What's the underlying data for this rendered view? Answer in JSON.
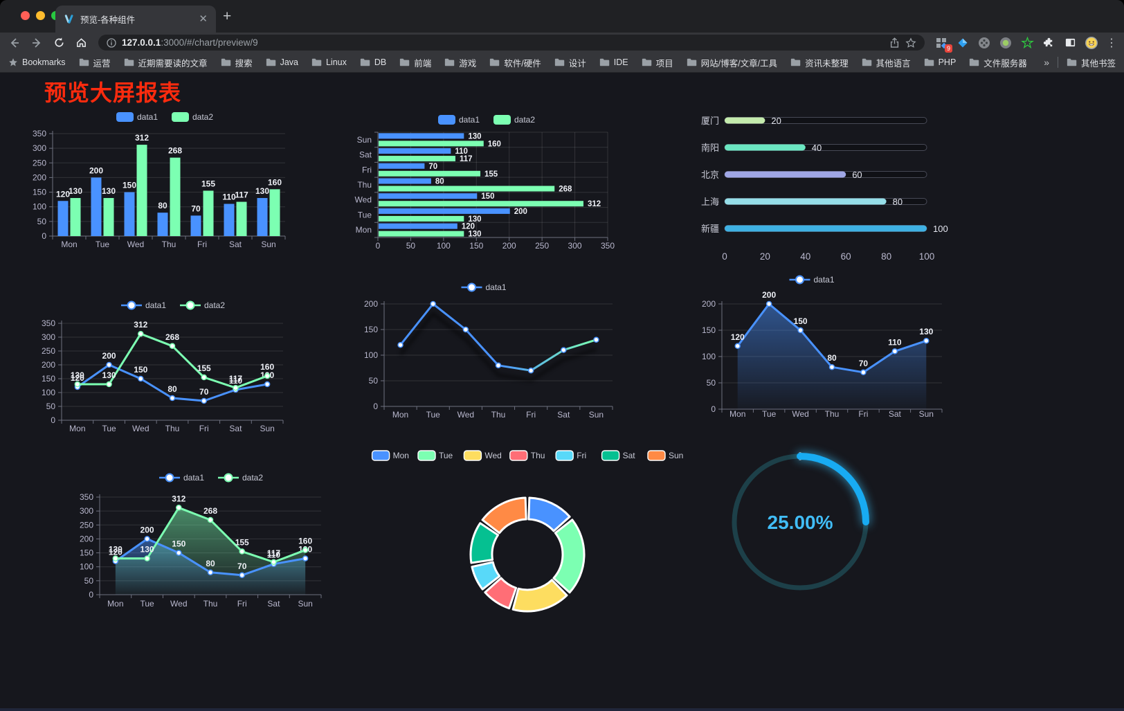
{
  "browser": {
    "tab_title": "预览-各种组件",
    "new_tab_label": "+",
    "url": {
      "host": "127.0.0.1",
      "rest": ":3000/#/chart/preview/9"
    },
    "extension_badge": "9",
    "bookmarks_label": "Bookmarks",
    "bookmark_folders": [
      "运营",
      "近期需要读的文章",
      "搜索",
      "Java",
      "Linux",
      "DB",
      "前端",
      "游戏",
      "软件/硬件",
      "设计",
      "IDE",
      "项目",
      "网站/博客/文章/工具",
      "资讯未整理",
      "其他语言",
      "PHP",
      "文件服务器"
    ],
    "bookmarks_overflow": "»",
    "other_bookmarks": "其他书签"
  },
  "page": {
    "title": "预览大屏报表",
    "title_color": "#fe2b0e",
    "background": "#16171d"
  },
  "chart_data": [
    {
      "id": "bar-chart",
      "type": "bar",
      "categories": [
        "Mon",
        "Tue",
        "Wed",
        "Thu",
        "Fri",
        "Sat",
        "Sun"
      ],
      "series": [
        {
          "name": "data1",
          "color": "#4992ff",
          "values": [
            120,
            200,
            150,
            80,
            70,
            110,
            130
          ]
        },
        {
          "name": "data2",
          "color": "#7cffb2",
          "values": [
            130,
            130,
            312,
            268,
            155,
            117,
            160
          ]
        }
      ],
      "ylim": [
        0,
        350
      ],
      "ytick": 50,
      "show_labels": true,
      "legend_position": "top",
      "grid": true
    },
    {
      "id": "horizontal-bar-chart",
      "type": "hbar",
      "categories": [
        "Mon",
        "Tue",
        "Wed",
        "Thu",
        "Fri",
        "Sat",
        "Sun"
      ],
      "series": [
        {
          "name": "data1",
          "color": "#4992ff",
          "values": [
            120,
            200,
            150,
            80,
            70,
            110,
            130
          ]
        },
        {
          "name": "data2",
          "color": "#7cffb2",
          "values": [
            130,
            130,
            312,
            268,
            155,
            117,
            160
          ]
        }
      ],
      "xlim": [
        0,
        350
      ],
      "xtick": 50,
      "show_labels": true,
      "legend_position": "top",
      "grid": true
    },
    {
      "id": "progress-bar-chart",
      "type": "progress",
      "items": [
        {
          "label": "厦门",
          "value": 20,
          "color": "#c4ebad"
        },
        {
          "label": "南阳",
          "value": 40,
          "color": "#6be6c1"
        },
        {
          "label": "北京",
          "value": 60,
          "color": "#a0a7e6"
        },
        {
          "label": "上海",
          "value": 80,
          "color": "#96dee8"
        },
        {
          "label": "新疆",
          "value": 100,
          "color": "#3fb1e3"
        }
      ],
      "xlim": [
        0,
        100
      ],
      "xticks": [
        0,
        20,
        40,
        60,
        80,
        100
      ]
    },
    {
      "id": "line-chart",
      "type": "line",
      "categories": [
        "Mon",
        "Tue",
        "Wed",
        "Thu",
        "Fri",
        "Sat",
        "Sun"
      ],
      "series": [
        {
          "name": "data1",
          "color": "#4992ff",
          "values": [
            120,
            200,
            150,
            80,
            70,
            110,
            130
          ]
        },
        {
          "name": "data2",
          "color": "#7cffb2",
          "values": [
            130,
            130,
            312,
            268,
            155,
            117,
            160
          ]
        }
      ],
      "ylim": [
        0,
        350
      ],
      "ytick": 50,
      "show_labels": true,
      "legend_position": "top",
      "grid": true
    },
    {
      "id": "gradient-line-chart",
      "type": "line",
      "categories": [
        "Mon",
        "Tue",
        "Wed",
        "Thu",
        "Fri",
        "Sat",
        "Sun"
      ],
      "series": [
        {
          "name": "data1",
          "color": "#4992ff",
          "gradient_to": "#7cffb2",
          "values": [
            120,
            200,
            150,
            80,
            70,
            110,
            130
          ]
        }
      ],
      "ylim": [
        0,
        200
      ],
      "ytick": 50,
      "show_labels": false,
      "line_shadow": true,
      "legend_position": "top",
      "grid": true
    },
    {
      "id": "area-chart",
      "type": "line",
      "categories": [
        "Mon",
        "Tue",
        "Wed",
        "Thu",
        "Fri",
        "Sat",
        "Sun"
      ],
      "series": [
        {
          "name": "data1",
          "color": "#4992ff",
          "area": true,
          "values": [
            120,
            200,
            150,
            80,
            70,
            110,
            130
          ]
        }
      ],
      "ylim": [
        0,
        200
      ],
      "ytick": 50,
      "show_labels": true,
      "legend_position": "top",
      "grid": true
    },
    {
      "id": "double-area-chart",
      "type": "line",
      "categories": [
        "Mon",
        "Tue",
        "Wed",
        "Thu",
        "Fri",
        "Sat",
        "Sun"
      ],
      "series": [
        {
          "name": "data1",
          "color": "#4992ff",
          "area": true,
          "values": [
            120,
            200,
            150,
            80,
            70,
            110,
            130
          ]
        },
        {
          "name": "data2",
          "color": "#7cffb2",
          "area": true,
          "values": [
            130,
            130,
            312,
            268,
            155,
            117,
            160
          ]
        }
      ],
      "ylim": [
        0,
        350
      ],
      "ytick": 50,
      "show_labels": true,
      "legend_position": "top",
      "grid": true
    },
    {
      "id": "donut-chart",
      "type": "pie",
      "categories": [
        "Mon",
        "Tue",
        "Wed",
        "Thu",
        "Fri",
        "Sat",
        "Sun"
      ],
      "values": [
        120,
        200,
        150,
        80,
        70,
        110,
        130
      ],
      "colors": [
        "#4992ff",
        "#7cffb2",
        "#fddd60",
        "#ff6e76",
        "#58d9f9",
        "#05c091",
        "#ff8a45"
      ],
      "legend_position": "top",
      "inner_radius_pct": 62
    },
    {
      "id": "ring-gauge-chart",
      "type": "gauge",
      "value": 25,
      "display": "25.00%",
      "arc_color": "#18abf2",
      "track_color": "#1d4049",
      "text_color": "#41bdf7"
    }
  ]
}
